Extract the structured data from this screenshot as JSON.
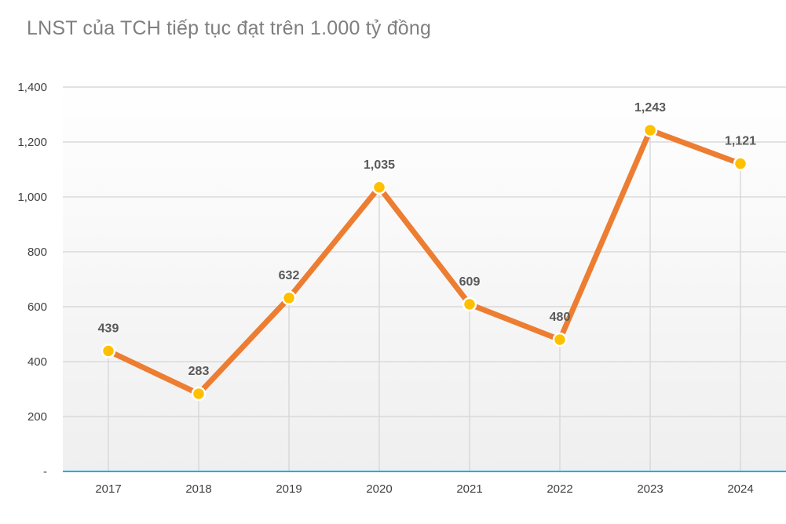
{
  "chart_data": {
    "type": "line",
    "title": "LNST của TCH tiếp tục đạt trên 1.000 tỷ đồng",
    "xlabel": "",
    "ylabel": "",
    "categories": [
      "2017",
      "2018",
      "2019",
      "2020",
      "2021",
      "2022",
      "2023",
      "2024"
    ],
    "values": [
      439,
      283,
      632,
      1035,
      609,
      480,
      1243,
      1121
    ],
    "data_labels": [
      "439",
      "283",
      "632",
      "1,035",
      "609",
      "480",
      "1,243",
      "1,121"
    ],
    "ylim": [
      0,
      1400
    ],
    "y_ticks": [
      0,
      200,
      400,
      600,
      800,
      1000,
      1200,
      1400
    ],
    "y_tick_labels": [
      "-",
      "200",
      "400",
      "600",
      "800",
      "1,000",
      "1,200",
      "1,400"
    ],
    "grid": true,
    "legend": "none",
    "colors": {
      "line": "#ED7D31",
      "marker": "#FFC000",
      "marker_edge": "#FFFFFF",
      "gridline": "#D9D9D9",
      "drop_line": "#D9D9D9",
      "x_axis": "#00B0F0",
      "title": "#7F7F7F",
      "label": "#595959",
      "tick": "#404040",
      "bg_top": "#FFFFFF",
      "bg_bottom": "#EFEFEF"
    }
  }
}
